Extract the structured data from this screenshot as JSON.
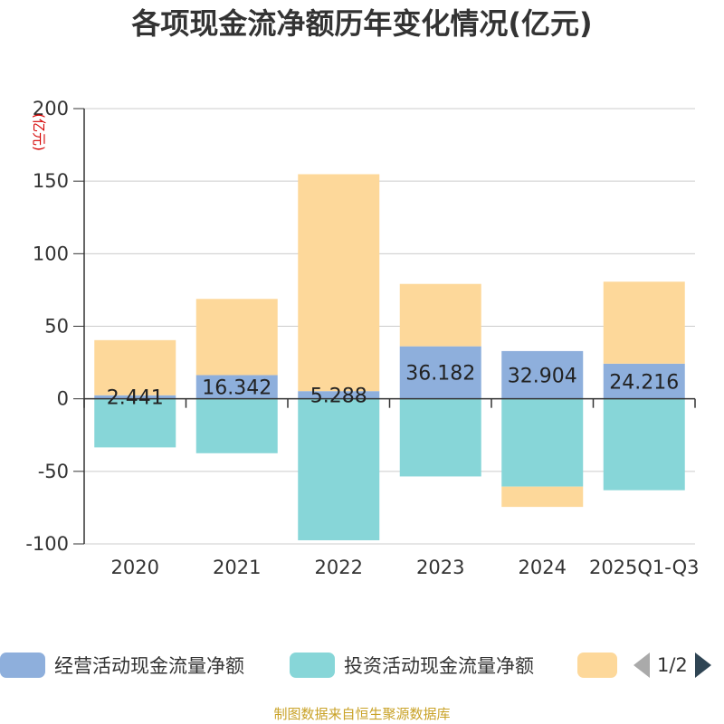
{
  "footer": "制图数据来自恒生聚源数据库",
  "legend": {
    "items": [
      {
        "label": "经营活动现金流量净额",
        "color": "#8eafdc"
      },
      {
        "label": "投资活动现金流量净额",
        "color": "#87d6d8"
      },
      {
        "label": "",
        "color": "#fdd89a"
      }
    ],
    "page": "1/2"
  },
  "chart_data": {
    "type": "bar",
    "stacked": true,
    "title": "各项现金流净额历年变化情况(亿元)",
    "ylabel": "(亿元)",
    "ylim": [
      -100,
      200
    ],
    "yticks": [
      -100,
      -50,
      0,
      50,
      100,
      150,
      200
    ],
    "categories": [
      "2020",
      "2021",
      "2022",
      "2023",
      "2024",
      "2025Q1-Q3"
    ],
    "grid": true,
    "legend_position": "bottom",
    "series": [
      {
        "name": "经营活动现金流量净额",
        "color": "#8eafdc",
        "values": [
          2.441,
          16.342,
          5.288,
          36.182,
          32.904,
          24.216
        ],
        "data_labels": [
          "2.441",
          "16.342",
          "5.288",
          "36.182",
          "32.904",
          "24.216"
        ]
      },
      {
        "name": "投资活动现金流量净额",
        "color": "#87d6d8",
        "values": [
          -33.5,
          -37.5,
          -97.5,
          -53.5,
          -60.5,
          -63.0
        ]
      },
      {
        "color": "#fdd89a",
        "values": [
          38.0,
          52.5,
          149.5,
          43.0,
          -14.0,
          56.5
        ]
      }
    ]
  }
}
